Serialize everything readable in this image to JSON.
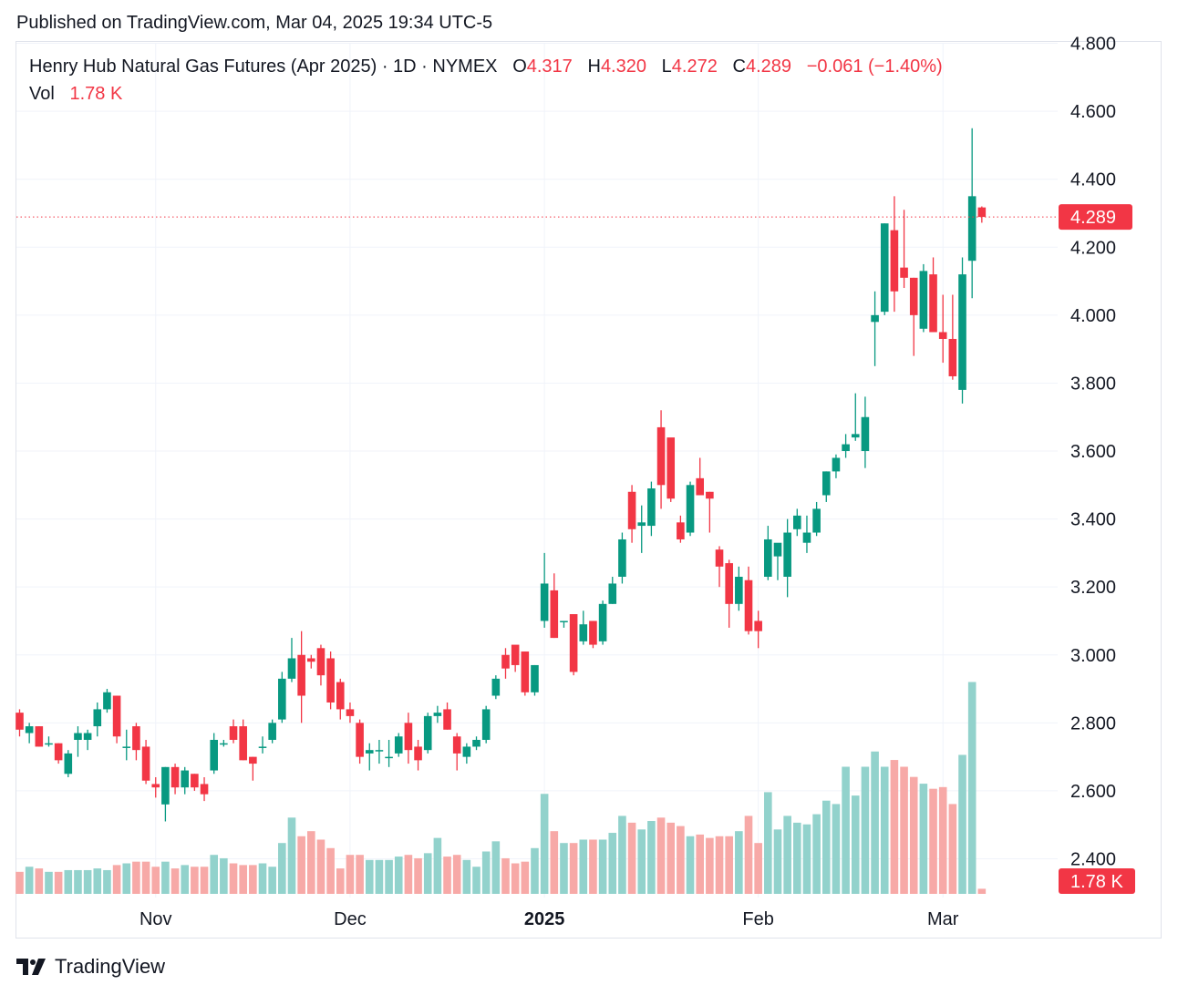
{
  "header": {
    "published_text": "Published on TradingView.com, Mar 04, 2025 19:34 UTC-5"
  },
  "legend": {
    "symbol": "Henry Hub Natural Gas Futures (Apr 2025) · 1D · NYMEX",
    "open_label": "O",
    "open": "4.317",
    "high_label": "H",
    "high": "4.320",
    "low_label": "L",
    "low": "4.272",
    "close_label": "C",
    "close": "4.289",
    "change": "−0.061 (−1.40%)",
    "vol_label": "Vol",
    "vol": "1.78 K"
  },
  "price_badge": "4.289",
  "volume_badge": "1.78 K",
  "footer": {
    "brand": "TradingView"
  },
  "colors": {
    "up": "#089981",
    "down": "#f23645",
    "up_vol": "#92d2cc",
    "down_vol": "#f7a9a7",
    "grid": "#f0f3fa"
  },
  "chart_data": {
    "type": "candlestick",
    "ylim": [
      2.4,
      4.8
    ],
    "yticks": [
      2.4,
      2.6,
      2.8,
      3.0,
      3.2,
      3.4,
      3.6,
      3.8,
      4.0,
      4.2,
      4.4,
      4.6,
      4.8
    ],
    "ytick_labels": [
      "2.400",
      "2.600",
      "2.800",
      "3.000",
      "3.200",
      "3.400",
      "3.600",
      "3.800",
      "4.000",
      "4.200",
      "4.400",
      "4.600",
      "4.800"
    ],
    "xtick_labels": [
      {
        "label": "Nov",
        "index": 14,
        "bold": false
      },
      {
        "label": "Dec",
        "index": 34,
        "bold": false
      },
      {
        "label": "2025",
        "index": 54,
        "bold": true
      },
      {
        "label": "Feb",
        "index": 76,
        "bold": false
      },
      {
        "label": "Mar",
        "index": 95,
        "bold": false
      }
    ],
    "last_price": 4.289,
    "candles": [
      [
        2.83,
        2.84,
        2.76,
        2.78,
        1.3
      ],
      [
        2.77,
        2.8,
        2.74,
        2.79,
        1.6
      ],
      [
        2.79,
        2.79,
        2.73,
        2.73,
        1.5
      ],
      [
        2.74,
        2.76,
        2.73,
        2.74,
        1.3
      ],
      [
        2.74,
        2.74,
        2.68,
        2.69,
        1.3
      ],
      [
        2.65,
        2.72,
        2.64,
        2.71,
        1.4
      ],
      [
        2.75,
        2.79,
        2.7,
        2.77,
        1.4
      ],
      [
        2.75,
        2.78,
        2.72,
        2.77,
        1.4
      ],
      [
        2.79,
        2.86,
        2.76,
        2.84,
        1.5
      ],
      [
        2.84,
        2.9,
        2.83,
        2.89,
        1.4
      ],
      [
        2.88,
        2.88,
        2.74,
        2.76,
        1.7
      ],
      [
        2.73,
        2.78,
        2.69,
        2.73,
        1.8
      ],
      [
        2.79,
        2.8,
        2.69,
        2.72,
        1.9
      ],
      [
        2.73,
        2.75,
        2.62,
        2.63,
        1.9
      ],
      [
        2.62,
        2.64,
        2.58,
        2.61,
        1.6
      ],
      [
        2.56,
        2.67,
        2.51,
        2.67,
        1.9
      ],
      [
        2.67,
        2.68,
        2.59,
        2.61,
        1.5
      ],
      [
        2.61,
        2.67,
        2.59,
        2.66,
        1.7
      ],
      [
        2.65,
        2.65,
        2.6,
        2.61,
        1.6
      ],
      [
        2.62,
        2.64,
        2.57,
        2.59,
        1.6
      ],
      [
        2.66,
        2.77,
        2.65,
        2.75,
        2.3
      ],
      [
        2.74,
        2.75,
        2.73,
        2.74,
        2.1
      ],
      [
        2.79,
        2.81,
        2.74,
        2.75,
        1.8
      ],
      [
        2.79,
        2.81,
        2.69,
        2.69,
        1.7
      ],
      [
        2.7,
        2.7,
        2.63,
        2.68,
        1.7
      ],
      [
        2.73,
        2.76,
        2.71,
        2.73,
        1.8
      ],
      [
        2.75,
        2.81,
        2.74,
        2.8,
        1.6
      ],
      [
        2.81,
        2.95,
        2.8,
        2.93,
        3.0
      ],
      [
        2.93,
        3.05,
        2.92,
        2.99,
        4.5
      ],
      [
        3.0,
        3.07,
        2.8,
        2.88,
        3.4
      ],
      [
        2.99,
        3.0,
        2.96,
        2.98,
        3.7
      ],
      [
        3.02,
        3.03,
        2.91,
        2.94,
        3.2
      ],
      [
        2.99,
        3.01,
        2.84,
        2.86,
        2.7
      ],
      [
        2.92,
        2.93,
        2.81,
        2.84,
        1.5
      ],
      [
        2.84,
        2.86,
        2.8,
        2.82,
        2.3
      ],
      [
        2.8,
        2.81,
        2.68,
        2.7,
        2.3
      ],
      [
        2.71,
        2.74,
        2.66,
        2.72,
        2.0
      ],
      [
        2.72,
        2.75,
        2.68,
        2.72,
        2.0
      ],
      [
        2.7,
        2.75,
        2.67,
        2.7,
        2.0
      ],
      [
        2.71,
        2.77,
        2.7,
        2.76,
        2.2
      ],
      [
        2.8,
        2.83,
        2.68,
        2.72,
        2.3
      ],
      [
        2.73,
        2.75,
        2.66,
        2.69,
        2.1
      ],
      [
        2.72,
        2.83,
        2.71,
        2.82,
        2.4
      ],
      [
        2.82,
        2.85,
        2.8,
        2.83,
        3.3
      ],
      [
        2.84,
        2.86,
        2.78,
        2.78,
        2.2
      ],
      [
        2.76,
        2.77,
        2.66,
        2.71,
        2.3
      ],
      [
        2.7,
        2.74,
        2.68,
        2.73,
        2.0
      ],
      [
        2.73,
        2.76,
        2.72,
        2.75,
        1.6
      ],
      [
        2.75,
        2.85,
        2.74,
        2.84,
        2.5
      ],
      [
        2.88,
        2.94,
        2.87,
        2.93,
        3.1
      ],
      [
        3.0,
        3.02,
        2.93,
        2.96,
        2.1
      ],
      [
        3.03,
        3.02,
        2.95,
        2.97,
        1.8
      ],
      [
        3.01,
        3.01,
        2.88,
        2.89,
        1.9
      ],
      [
        2.89,
        2.97,
        2.88,
        2.97,
        2.7
      ],
      [
        3.1,
        3.3,
        3.08,
        3.21,
        5.9
      ],
      [
        3.19,
        3.24,
        3.05,
        3.05,
        3.7
      ],
      [
        3.1,
        3.1,
        3.08,
        3.1,
        3.0
      ],
      [
        3.12,
        3.12,
        2.94,
        2.95,
        3.0
      ],
      [
        3.04,
        3.13,
        3.03,
        3.09,
        3.2
      ],
      [
        3.1,
        3.1,
        3.02,
        3.03,
        3.2
      ],
      [
        3.04,
        3.16,
        3.03,
        3.15,
        3.2
      ],
      [
        3.15,
        3.23,
        3.15,
        3.21,
        3.6
      ],
      [
        3.23,
        3.36,
        3.21,
        3.34,
        4.6
      ],
      [
        3.48,
        3.5,
        3.33,
        3.37,
        4.2
      ],
      [
        3.38,
        3.44,
        3.3,
        3.39,
        3.8
      ],
      [
        3.38,
        3.51,
        3.35,
        3.49,
        4.3
      ],
      [
        3.67,
        3.72,
        3.43,
        3.5,
        4.5
      ],
      [
        3.64,
        3.63,
        3.45,
        3.46,
        4.2
      ],
      [
        3.39,
        3.41,
        3.33,
        3.34,
        4.0
      ],
      [
        3.36,
        3.51,
        3.35,
        3.5,
        3.4
      ],
      [
        3.52,
        3.58,
        3.47,
        3.47,
        3.5
      ],
      [
        3.48,
        3.48,
        3.36,
        3.46,
        3.3
      ],
      [
        3.31,
        3.32,
        3.2,
        3.26,
        3.4
      ],
      [
        3.27,
        3.28,
        3.08,
        3.15,
        3.4
      ],
      [
        3.15,
        3.26,
        3.13,
        3.23,
        3.7
      ],
      [
        3.22,
        3.26,
        3.06,
        3.07,
        4.6
      ],
      [
        3.1,
        3.13,
        3.02,
        3.07,
        3.0
      ],
      [
        3.23,
        3.38,
        3.22,
        3.34,
        6.0
      ],
      [
        3.29,
        3.32,
        3.22,
        3.33,
        3.8
      ],
      [
        3.23,
        3.4,
        3.17,
        3.36,
        4.6
      ],
      [
        3.37,
        3.43,
        3.35,
        3.41,
        4.2
      ],
      [
        3.33,
        3.41,
        3.3,
        3.36,
        4.1
      ],
      [
        3.36,
        3.45,
        3.35,
        3.43,
        4.7
      ],
      [
        3.47,
        3.54,
        3.45,
        3.54,
        5.5
      ],
      [
        3.54,
        3.59,
        3.52,
        3.58,
        5.3
      ],
      [
        3.6,
        3.65,
        3.58,
        3.62,
        7.5
      ],
      [
        3.64,
        3.77,
        3.63,
        3.65,
        5.8
      ],
      [
        3.6,
        3.76,
        3.55,
        3.7,
        7.5
      ],
      [
        3.98,
        4.07,
        3.85,
        4.0,
        8.4
      ],
      [
        4.01,
        4.27,
        4.0,
        4.27,
        7.5
      ],
      [
        4.25,
        4.35,
        4.01,
        4.07,
        7.9
      ],
      [
        4.14,
        4.31,
        4.08,
        4.11,
        7.5
      ],
      [
        4.11,
        4.11,
        3.88,
        4.0,
        6.9
      ],
      [
        3.96,
        4.15,
        3.95,
        4.13,
        6.5
      ],
      [
        4.12,
        4.17,
        3.95,
        3.95,
        6.2
      ],
      [
        3.95,
        4.06,
        3.86,
        3.93,
        6.3
      ],
      [
        3.93,
        4.06,
        3.81,
        3.82,
        5.3
      ],
      [
        3.78,
        4.17,
        3.74,
        4.12,
        8.2
      ],
      [
        4.16,
        4.55,
        4.05,
        4.35,
        12.5
      ],
      [
        4.317,
        4.32,
        4.272,
        4.289,
        0.3
      ]
    ]
  }
}
